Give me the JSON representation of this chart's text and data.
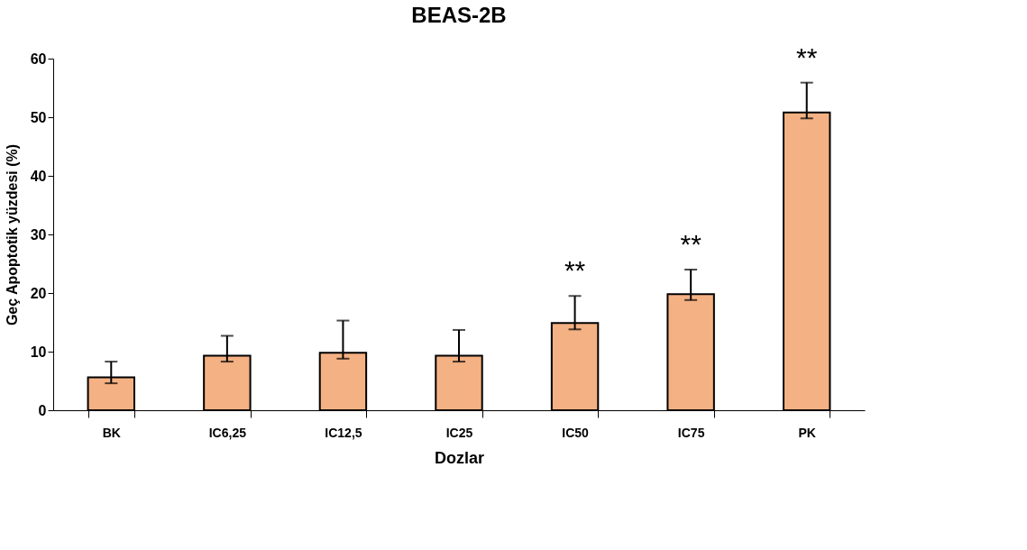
{
  "chart_data": {
    "type": "bar",
    "title": "BEAS-2B",
    "xlabel": "Dozlar",
    "ylabel": "Geç Apoptotik yüzdesi (%)",
    "categories": [
      "BK",
      "IC6,25",
      "IC12,5",
      "IC25",
      "IC50",
      "IC75",
      "PK"
    ],
    "values": [
      5.6,
      9.3,
      9.8,
      9.3,
      14.9,
      19.8,
      50.8
    ],
    "errors": [
      [
        4.6,
        8.3
      ],
      [
        8.3,
        12.7
      ],
      [
        8.8,
        15.3
      ],
      [
        8.3,
        13.7
      ],
      [
        13.8,
        19.5
      ],
      [
        18.8,
        24.0
      ],
      [
        49.8,
        55.9
      ]
    ],
    "color": "#f4b183",
    "ylim": [
      0,
      60
    ],
    "yticks": [
      0,
      10,
      20,
      30,
      40,
      50,
      60
    ],
    "grid": false,
    "annotations": [
      {
        "text": "**",
        "x": "IC50",
        "y": 19.5
      },
      {
        "text": "**",
        "x": "IC75",
        "y": 24.0
      },
      {
        "text": "**",
        "x": "PK",
        "y": 55.9
      }
    ]
  }
}
